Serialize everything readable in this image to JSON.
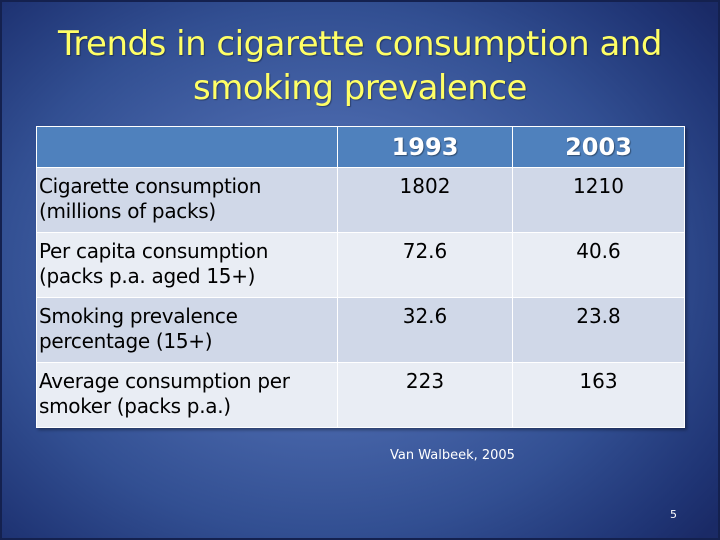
{
  "slide": {
    "title_line1": "Trends in cigarette consumption and",
    "title_line2": "smoking prevalence",
    "source": "Van Walbeek, 2005",
    "page_number": "5"
  },
  "table": {
    "headers": [
      "",
      "1993",
      "2003"
    ],
    "rows": [
      {
        "label_line1": "Cigarette consumption",
        "label_line2": "(millions of packs)",
        "values": [
          "1802",
          "1210"
        ]
      },
      {
        "label_line1": "Per capita consumption",
        "label_line2": "(packs p.a. aged 15+)",
        "values": [
          "72.6",
          "40.6"
        ]
      },
      {
        "label_line1": "Smoking prevalence",
        "label_line2": "percentage (15+)",
        "values": [
          "32.6",
          "23.8"
        ]
      },
      {
        "label_line1": "Average consumption per",
        "label_line2": "smoker (packs p.a.)",
        "values": [
          "223",
          "163"
        ]
      }
    ]
  },
  "colors": {
    "title": "#ffff66",
    "header_bg": "#4f81bd",
    "row_odd_bg": "#d0d8e8",
    "row_even_bg": "#e9edf4",
    "background_center": "#5674b8",
    "background_edge": "#1a2a66"
  }
}
